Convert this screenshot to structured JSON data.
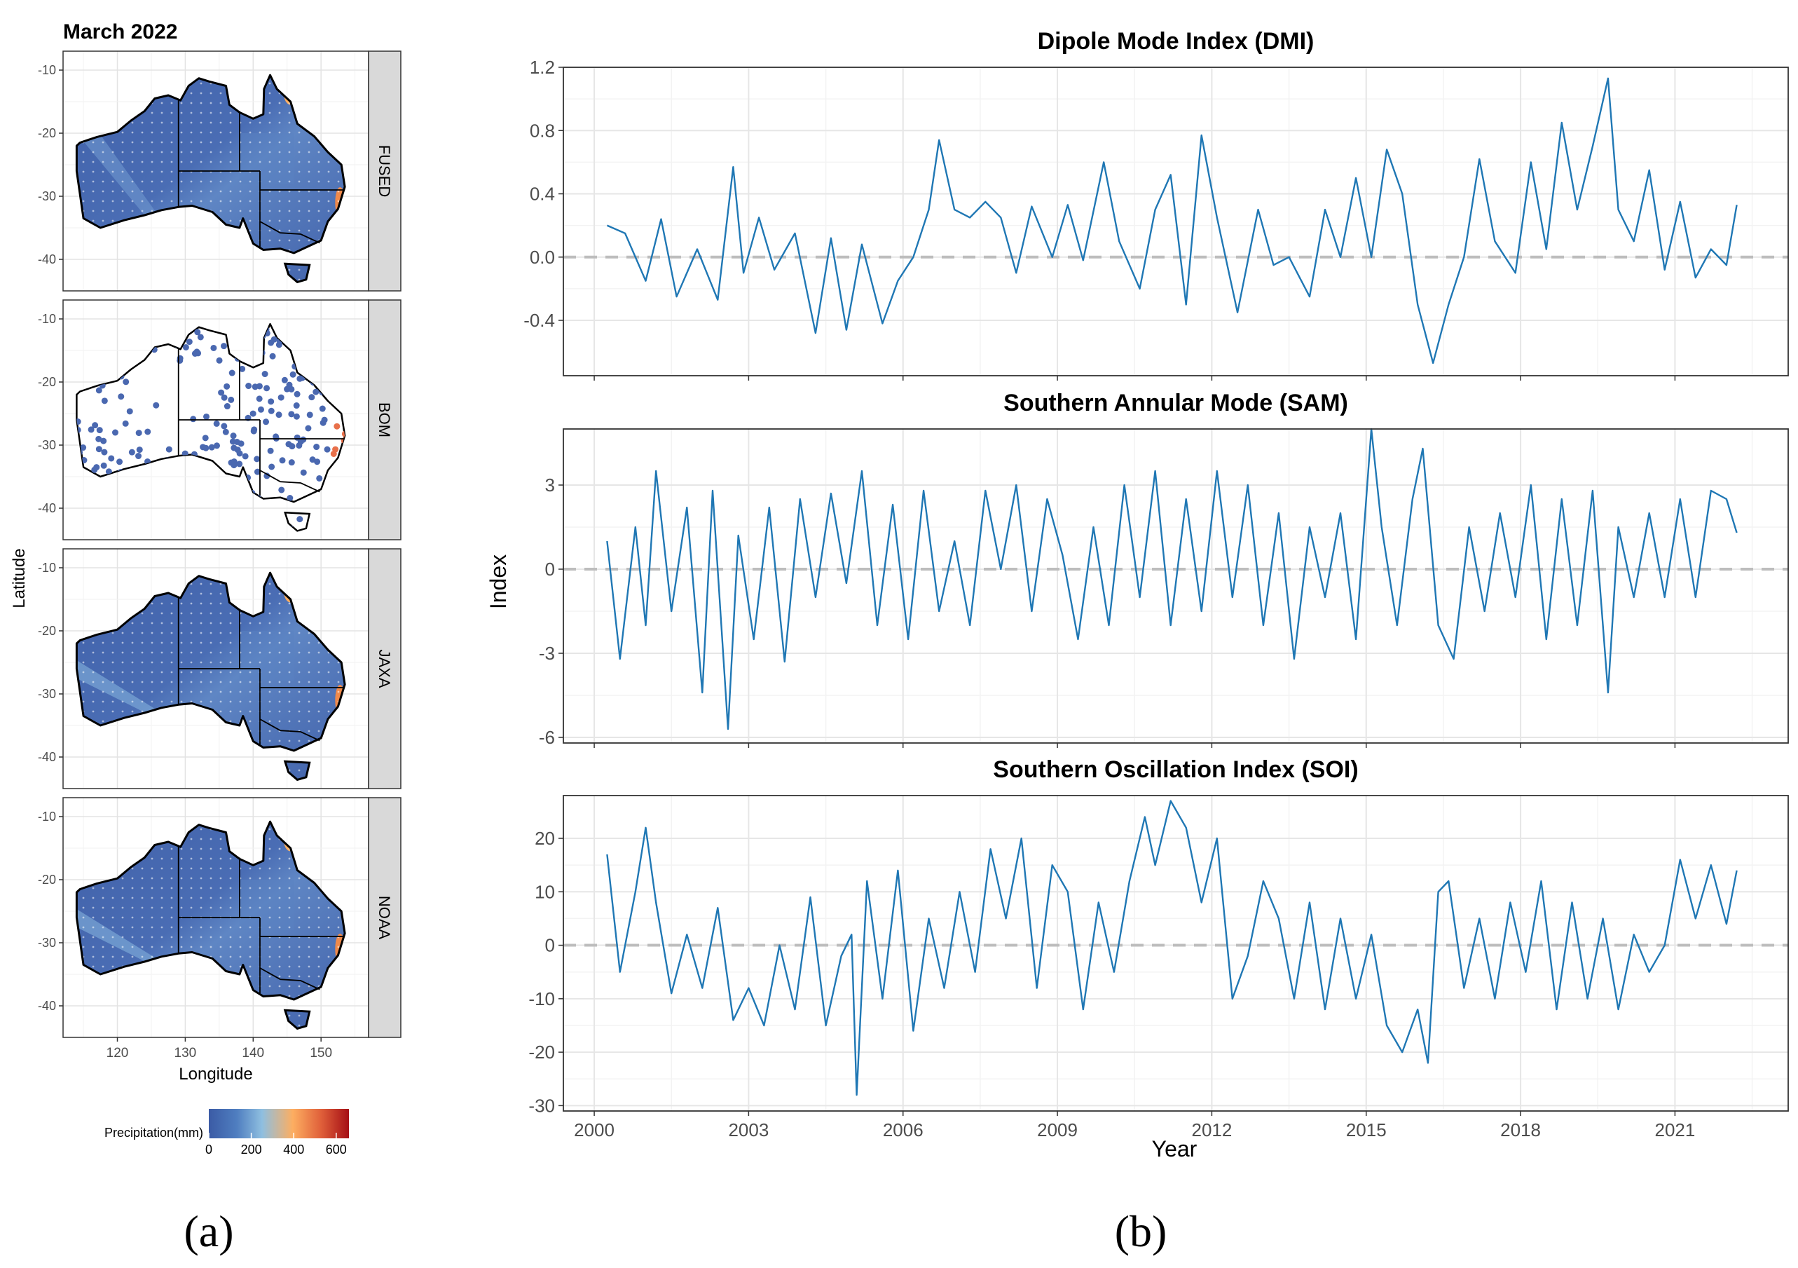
{
  "panel_a": {
    "title": "March 2022",
    "xlabel": "Longitude",
    "ylabel": "Latitude",
    "x_ticks": [
      120,
      130,
      140,
      150
    ],
    "y_ticks": [
      -10,
      -20,
      -30,
      -40
    ],
    "xlim": [
      112,
      157
    ],
    "ylim": [
      -45,
      -7
    ],
    "facets": [
      "FUSED",
      "BOM",
      "JAXA",
      "NOAA"
    ],
    "legend": {
      "title": "Precipitation(mm)",
      "ticks": [
        0,
        200,
        400,
        600
      ],
      "colors": [
        "#3b5ba5",
        "#4f7ec0",
        "#8fbfe0",
        "#fdae61",
        "#e0603a",
        "#a50f15"
      ]
    },
    "caption": "(a)"
  },
  "panel_b": {
    "caption": "(b)",
    "ylabel": "Index",
    "xlabel": "Year",
    "x_ticks": [
      2000,
      2003,
      2006,
      2009,
      2012,
      2015,
      2018,
      2021
    ],
    "line_color": "#1f77b4",
    "zero_line_color": "#bdbdbd"
  },
  "chart_data": [
    {
      "type": "line",
      "title": "Dipole Mode Index (DMI)",
      "ylim": [
        -0.75,
        1.2
      ],
      "y_ticks": [
        -0.4,
        0.0,
        0.4,
        0.8,
        1.2
      ],
      "y_tick_labels": [
        "-0.4",
        "0.0",
        "0.4",
        "0.8",
        "1.2"
      ],
      "x": [
        2000.25,
        2000.6,
        2001.0,
        2001.3,
        2001.6,
        2002.0,
        2002.4,
        2002.7,
        2002.9,
        2003.2,
        2003.5,
        2003.9,
        2004.3,
        2004.6,
        2004.9,
        2005.2,
        2005.6,
        2005.9,
        2006.2,
        2006.5,
        2006.7,
        2007.0,
        2007.3,
        2007.6,
        2007.9,
        2008.2,
        2008.5,
        2008.9,
        2009.2,
        2009.5,
        2009.9,
        2010.2,
        2010.6,
        2010.9,
        2011.2,
        2011.5,
        2011.8,
        2012.1,
        2012.5,
        2012.9,
        2013.2,
        2013.5,
        2013.9,
        2014.2,
        2014.5,
        2014.8,
        2015.1,
        2015.4,
        2015.7,
        2016.0,
        2016.3,
        2016.6,
        2016.9,
        2017.2,
        2017.5,
        2017.9,
        2018.2,
        2018.5,
        2018.8,
        2019.1,
        2019.4,
        2019.7,
        2019.9,
        2020.2,
        2020.5,
        2020.8,
        2021.1,
        2021.4,
        2021.7,
        2022.0,
        2022.2
      ],
      "values": [
        0.2,
        0.15,
        -0.15,
        0.24,
        -0.25,
        0.05,
        -0.27,
        0.57,
        -0.1,
        0.25,
        -0.08,
        0.15,
        -0.48,
        0.12,
        -0.46,
        0.08,
        -0.42,
        -0.15,
        0.0,
        0.3,
        0.74,
        0.3,
        0.25,
        0.35,
        0.25,
        -0.1,
        0.32,
        0.0,
        0.33,
        -0.02,
        0.6,
        0.1,
        -0.2,
        0.3,
        0.52,
        -0.3,
        0.77,
        0.25,
        -0.35,
        0.3,
        -0.05,
        0.0,
        -0.25,
        0.3,
        0.0,
        0.5,
        0.0,
        0.68,
        0.4,
        -0.3,
        -0.67,
        -0.3,
        0.0,
        0.62,
        0.1,
        -0.1,
        0.6,
        0.05,
        0.85,
        0.3,
        0.7,
        1.13,
        0.3,
        0.1,
        0.55,
        -0.08,
        0.35,
        -0.13,
        0.05,
        -0.05,
        0.33
      ]
    },
    {
      "type": "line",
      "title": "Southern Annular Mode (SAM)",
      "ylim": [
        -6.2,
        5.0
      ],
      "y_ticks": [
        -6,
        -3,
        0,
        3
      ],
      "y_tick_labels": [
        "-6",
        "-3",
        "0",
        "3"
      ],
      "x": [
        2000.25,
        2000.5,
        2000.8,
        2001.0,
        2001.2,
        2001.5,
        2001.8,
        2002.1,
        2002.3,
        2002.6,
        2002.8,
        2003.1,
        2003.4,
        2003.7,
        2004.0,
        2004.3,
        2004.6,
        2004.9,
        2005.2,
        2005.5,
        2005.8,
        2006.1,
        2006.4,
        2006.7,
        2007.0,
        2007.3,
        2007.6,
        2007.9,
        2008.2,
        2008.5,
        2008.8,
        2009.1,
        2009.4,
        2009.7,
        2010.0,
        2010.3,
        2010.6,
        2010.9,
        2011.2,
        2011.5,
        2011.8,
        2012.1,
        2012.4,
        2012.7,
        2013.0,
        2013.3,
        2013.6,
        2013.9,
        2014.2,
        2014.5,
        2014.8,
        2015.1,
        2015.3,
        2015.6,
        2015.9,
        2016.1,
        2016.4,
        2016.7,
        2017.0,
        2017.3,
        2017.6,
        2017.9,
        2018.2,
        2018.5,
        2018.8,
        2019.1,
        2019.4,
        2019.7,
        2019.9,
        2020.2,
        2020.5,
        2020.8,
        2021.1,
        2021.4,
        2021.7,
        2022.0,
        2022.2
      ],
      "values": [
        1.0,
        -3.2,
        1.5,
        -2.0,
        3.5,
        -1.5,
        2.2,
        -4.4,
        2.8,
        -5.7,
        1.2,
        -2.5,
        2.2,
        -3.3,
        2.5,
        -1.0,
        2.7,
        -0.5,
        3.5,
        -2.0,
        2.3,
        -2.5,
        2.8,
        -1.5,
        1.0,
        -2.0,
        2.8,
        0.0,
        3.0,
        -1.5,
        2.5,
        0.5,
        -2.5,
        1.5,
        -2.0,
        3.0,
        -1.0,
        3.5,
        -2.0,
        2.5,
        -1.5,
        3.5,
        -1.0,
        3.0,
        -2.0,
        2.0,
        -3.2,
        1.5,
        -1.0,
        2.0,
        -2.5,
        5.0,
        1.5,
        -2.0,
        2.5,
        4.3,
        -2.0,
        -3.2,
        1.5,
        -1.5,
        2.0,
        -1.0,
        3.0,
        -2.5,
        2.5,
        -2.0,
        2.8,
        -4.4,
        1.5,
        -1.0,
        2.0,
        -1.0,
        2.5,
        -1.0,
        2.8,
        2.5,
        1.3
      ]
    },
    {
      "type": "line",
      "title": "Southern Oscillation Index (SOI)",
      "ylim": [
        -31,
        28
      ],
      "y_ticks": [
        -30,
        -20,
        -10,
        0,
        10,
        20
      ],
      "y_tick_labels": [
        "-30",
        "-20",
        "-10",
        "0",
        "10",
        "20"
      ],
      "x": [
        2000.25,
        2000.5,
        2000.8,
        2001.0,
        2001.2,
        2001.5,
        2001.8,
        2002.1,
        2002.4,
        2002.7,
        2003.0,
        2003.3,
        2003.6,
        2003.9,
        2004.2,
        2004.5,
        2004.8,
        2005.0,
        2005.1,
        2005.3,
        2005.6,
        2005.9,
        2006.2,
        2006.5,
        2006.8,
        2007.1,
        2007.4,
        2007.7,
        2008.0,
        2008.3,
        2008.6,
        2008.9,
        2009.2,
        2009.5,
        2009.8,
        2010.1,
        2010.4,
        2010.7,
        2010.9,
        2011.2,
        2011.5,
        2011.8,
        2012.1,
        2012.4,
        2012.7,
        2013.0,
        2013.3,
        2013.6,
        2013.9,
        2014.2,
        2014.5,
        2014.8,
        2015.1,
        2015.4,
        2015.7,
        2016.0,
        2016.2,
        2016.4,
        2016.6,
        2016.9,
        2017.2,
        2017.5,
        2017.8,
        2018.1,
        2018.4,
        2018.7,
        2019.0,
        2019.3,
        2019.6,
        2019.9,
        2020.2,
        2020.5,
        2020.8,
        2021.1,
        2021.4,
        2021.7,
        2022.0,
        2022.2
      ],
      "values": [
        17,
        -5,
        10,
        22,
        8,
        -9,
        2,
        -8,
        7,
        -14,
        -8,
        -15,
        0,
        -12,
        9,
        -15,
        -2,
        2,
        -28,
        12,
        -10,
        14,
        -16,
        5,
        -8,
        10,
        -5,
        18,
        5,
        20,
        -8,
        15,
        10,
        -12,
        8,
        -5,
        12,
        24,
        15,
        27,
        22,
        8,
        20,
        -10,
        -2,
        12,
        5,
        -10,
        8,
        -12,
        5,
        -10,
        2,
        -15,
        -20,
        -12,
        -22,
        10,
        12,
        -8,
        5,
        -10,
        8,
        -5,
        12,
        -12,
        8,
        -10,
        5,
        -12,
        2,
        -5,
        0,
        16,
        5,
        15,
        4,
        14
      ]
    }
  ]
}
